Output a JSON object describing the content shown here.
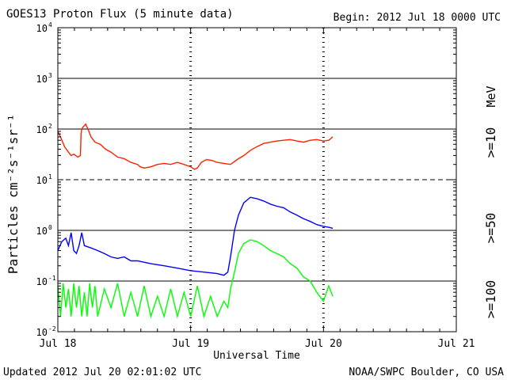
{
  "header": {
    "title": "GOES13 Proton Flux (5 minute data)",
    "begin": "Begin: 2012 Jul 18 0000 UTC"
  },
  "footer": {
    "updated": "Updated 2012 Jul 20 02:01:02 UTC",
    "source": "NOAA/SWPC Boulder, CO USA"
  },
  "colors": {
    "ge10": "#ff2000",
    "ge50": "#0000ff",
    "ge100": "#00ff00",
    "axis": "#000000",
    "background": "#ffffff"
  },
  "chart_data": {
    "type": "line",
    "title": "GOES13 Proton Flux (5 minute data)",
    "xlabel": "Universal Time",
    "ylabel": "Particles cm⁻²s⁻¹sr⁻¹",
    "yscale": "log",
    "ylim": [
      0.01,
      10000
    ],
    "xlim_days": [
      0,
      3
    ],
    "x_tick_labels": [
      "Jul 18",
      "Jul 19",
      "Jul 20",
      "Jul 21"
    ],
    "y_ticks": [
      {
        "base": "10",
        "exp": "-2"
      },
      {
        "base": "10",
        "exp": "-1"
      },
      {
        "base": "10",
        "exp": "0"
      },
      {
        "base": "10",
        "exp": "1"
      },
      {
        "base": "10",
        "exp": "2"
      },
      {
        "base": "10",
        "exp": "3"
      },
      {
        "base": "10",
        "exp": "4"
      }
    ],
    "grid": true,
    "series": [
      {
        "name": ">=10 MeV",
        "label_main": ">=10",
        "label_unit": "MeV",
        "color": "#ff2000",
        "x": [
          0.0,
          0.02,
          0.05,
          0.08,
          0.1,
          0.12,
          0.15,
          0.17,
          0.175,
          0.18,
          0.19,
          0.21,
          0.23,
          0.25,
          0.28,
          0.32,
          0.36,
          0.4,
          0.45,
          0.5,
          0.55,
          0.6,
          0.62,
          0.65,
          0.7,
          0.75,
          0.8,
          0.85,
          0.9,
          0.95,
          1.0,
          1.03,
          1.05,
          1.08,
          1.12,
          1.16,
          1.2,
          1.25,
          1.3,
          1.35,
          1.4,
          1.45,
          1.5,
          1.55,
          1.6,
          1.65,
          1.7,
          1.75,
          1.8,
          1.85,
          1.9,
          1.95,
          2.0,
          2.04,
          2.07
        ],
        "values": [
          90,
          70,
          45,
          35,
          30,
          32,
          28,
          30,
          80,
          100,
          110,
          125,
          95,
          70,
          55,
          50,
          40,
          35,
          28,
          26,
          22,
          20,
          18,
          17,
          18,
          20,
          21,
          20,
          22,
          20,
          18,
          16,
          17,
          22,
          25,
          24,
          22,
          21,
          20,
          25,
          30,
          38,
          45,
          52,
          55,
          58,
          60,
          62,
          58,
          55,
          60,
          62,
          58,
          60,
          70
        ]
      },
      {
        "name": ">=50 MeV",
        "label_main": ">=50",
        "label_unit": "",
        "color": "#0000ff",
        "x": [
          0.0,
          0.03,
          0.06,
          0.08,
          0.1,
          0.12,
          0.14,
          0.16,
          0.18,
          0.2,
          0.25,
          0.3,
          0.35,
          0.4,
          0.45,
          0.5,
          0.55,
          0.6,
          0.7,
          0.8,
          0.9,
          1.0,
          1.1,
          1.2,
          1.25,
          1.28,
          1.3,
          1.33,
          1.36,
          1.4,
          1.45,
          1.5,
          1.55,
          1.6,
          1.65,
          1.7,
          1.75,
          1.8,
          1.85,
          1.9,
          1.95,
          2.0,
          2.04,
          2.07
        ],
        "values": [
          0.4,
          0.6,
          0.7,
          0.5,
          0.9,
          0.4,
          0.35,
          0.5,
          0.9,
          0.5,
          0.45,
          0.4,
          0.35,
          0.3,
          0.28,
          0.3,
          0.25,
          0.25,
          0.22,
          0.2,
          0.18,
          0.16,
          0.15,
          0.14,
          0.13,
          0.15,
          0.3,
          1.0,
          2.0,
          3.5,
          4.5,
          4.2,
          3.8,
          3.3,
          3.0,
          2.8,
          2.3,
          2.0,
          1.7,
          1.5,
          1.3,
          1.2,
          1.15,
          1.1
        ]
      },
      {
        "name": ">=100 MeV",
        "label_main": ">=100",
        "label_unit": "",
        "color": "#00ff00",
        "x": [
          0.0,
          0.02,
          0.04,
          0.06,
          0.08,
          0.1,
          0.12,
          0.14,
          0.16,
          0.18,
          0.2,
          0.22,
          0.24,
          0.26,
          0.28,
          0.3,
          0.35,
          0.4,
          0.45,
          0.5,
          0.55,
          0.6,
          0.65,
          0.7,
          0.75,
          0.8,
          0.85,
          0.9,
          0.95,
          1.0,
          1.05,
          1.1,
          1.15,
          1.2,
          1.25,
          1.28,
          1.3,
          1.33,
          1.36,
          1.4,
          1.45,
          1.5,
          1.55,
          1.6,
          1.65,
          1.7,
          1.75,
          1.8,
          1.85,
          1.9,
          1.95,
          2.0,
          2.04,
          2.07
        ],
        "values": [
          0.08,
          0.02,
          0.09,
          0.03,
          0.07,
          0.02,
          0.09,
          0.03,
          0.08,
          0.02,
          0.06,
          0.02,
          0.09,
          0.03,
          0.08,
          0.02,
          0.07,
          0.03,
          0.09,
          0.02,
          0.06,
          0.02,
          0.08,
          0.02,
          0.05,
          0.02,
          0.07,
          0.02,
          0.06,
          0.02,
          0.08,
          0.02,
          0.05,
          0.02,
          0.04,
          0.03,
          0.07,
          0.15,
          0.35,
          0.55,
          0.65,
          0.6,
          0.5,
          0.4,
          0.35,
          0.3,
          0.22,
          0.18,
          0.12,
          0.1,
          0.06,
          0.04,
          0.08,
          0.05
        ]
      }
    ]
  }
}
